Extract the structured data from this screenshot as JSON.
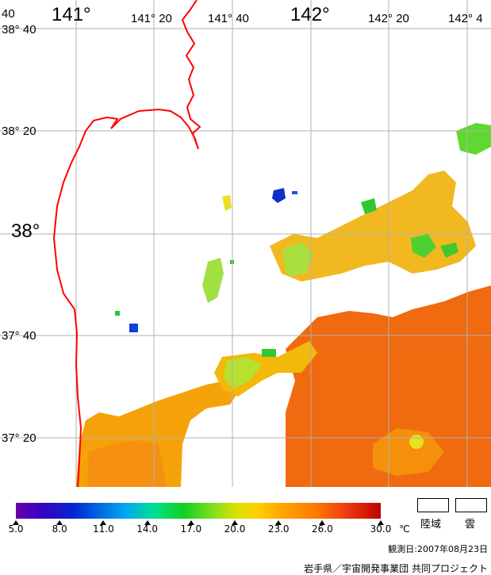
{
  "map": {
    "lon_labels": [
      {
        "text": "141°",
        "size": "lg"
      },
      {
        "text": "141° 20",
        "size": "sm"
      },
      {
        "text": "141° 40",
        "size": "sm"
      },
      {
        "text": "142°",
        "size": "lg"
      },
      {
        "text": "142° 20",
        "size": "sm"
      },
      {
        "text": "142° 4",
        "size": "sm"
      }
    ],
    "lat_labels": [
      {
        "text": "38° 40",
        "size": "sm"
      },
      {
        "text": "38° 20",
        "size": "sm"
      },
      {
        "text": "38°",
        "size": "lg"
      },
      {
        "text": "37° 40",
        "size": "sm"
      },
      {
        "text": "37° 20",
        "size": "sm"
      }
    ],
    "corner_label": "40",
    "coastline_color": "#ff0000",
    "grid_color": "#b0b0b0"
  },
  "colorbar": {
    "ticks": [
      "5.0",
      "8.0",
      "11.0",
      "14.0",
      "17.0",
      "20.0",
      "23.0",
      "26.0",
      "30.0"
    ],
    "unit": "℃",
    "min": 5.0,
    "max": 30.0
  },
  "legend": {
    "land_label": "陸域",
    "cloud_label": "雲"
  },
  "observation_date": "観測日:2007年08月23日",
  "credit": "岩手県／宇宙開発事業団 共同プロジェクト"
}
